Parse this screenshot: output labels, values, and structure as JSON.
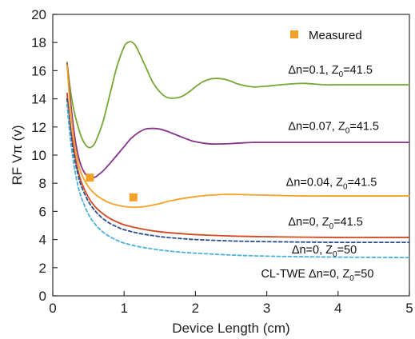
{
  "chart_data": {
    "type": "line",
    "title": "",
    "xlabel": "Device Length (cm)",
    "ylabel": "RF Vπ (v)",
    "xlim": [
      0,
      5
    ],
    "ylim": [
      0,
      20
    ],
    "xticks": [
      0,
      1,
      2,
      3,
      4,
      5
    ],
    "yticks": [
      0,
      2,
      4,
      6,
      8,
      10,
      12,
      14,
      16,
      18,
      20
    ],
    "grid": false,
    "legend": {
      "placement": "top-right",
      "entries": [
        "Measured"
      ]
    },
    "series": [
      {
        "name": "Δn=0.1, Z0=41.5",
        "color": "#77a736",
        "style": "solid",
        "x": [
          0.2,
          0.25,
          0.3,
          0.35,
          0.4,
          0.45,
          0.5,
          0.55,
          0.6,
          0.7,
          0.8,
          0.9,
          1.0,
          1.05,
          1.1,
          1.15,
          1.2,
          1.3,
          1.4,
          1.5,
          1.6,
          1.7,
          1.8,
          1.9,
          2.0,
          2.1,
          2.2,
          2.3,
          2.4,
          2.5,
          2.6,
          2.8,
          3.0,
          3.2,
          3.5,
          3.8,
          4.0,
          4.5,
          5.0
        ],
        "y": [
          16.6,
          14.5,
          13.1,
          12.1,
          11.3,
          10.8,
          10.55,
          10.6,
          10.95,
          12.3,
          14.3,
          16.3,
          17.7,
          18.0,
          18.05,
          17.85,
          17.4,
          16.3,
          15.2,
          14.5,
          14.1,
          14.05,
          14.15,
          14.45,
          14.85,
          15.2,
          15.4,
          15.45,
          15.4,
          15.25,
          15.05,
          14.85,
          14.9,
          15.0,
          15.1,
          15.0,
          15.0,
          15.0,
          15.0
        ]
      },
      {
        "name": "Δn=0.07, Z0=41.5",
        "color": "#86338b",
        "style": "solid",
        "x": [
          0.2,
          0.25,
          0.3,
          0.35,
          0.4,
          0.45,
          0.5,
          0.55,
          0.6,
          0.65,
          0.7,
          0.8,
          0.9,
          1.0,
          1.1,
          1.2,
          1.3,
          1.4,
          1.5,
          1.6,
          1.7,
          1.8,
          1.9,
          2.0,
          2.2,
          2.4,
          2.6,
          2.8,
          3.0,
          3.5,
          4.0,
          4.5,
          5.0
        ],
        "y": [
          16.5,
          13.8,
          11.6,
          10.1,
          9.2,
          8.7,
          8.45,
          8.4,
          8.45,
          8.65,
          8.85,
          9.4,
          10.0,
          10.6,
          11.2,
          11.6,
          11.85,
          11.9,
          11.85,
          11.7,
          11.5,
          11.3,
          11.1,
          10.95,
          10.8,
          10.8,
          10.85,
          10.9,
          10.9,
          10.9,
          10.9,
          10.9,
          10.9
        ]
      },
      {
        "name": "Δn=0.04, Z0=41.5",
        "color": "#f2a226",
        "style": "solid",
        "x": [
          0.2,
          0.25,
          0.3,
          0.35,
          0.4,
          0.5,
          0.6,
          0.7,
          0.8,
          0.9,
          1.0,
          1.1,
          1.2,
          1.3,
          1.4,
          1.5,
          1.6,
          1.7,
          1.8,
          2.0,
          2.2,
          2.4,
          2.6,
          3.0,
          3.5,
          4.0,
          4.5,
          5.0
        ],
        "y": [
          16.4,
          13.2,
          11.0,
          9.6,
          8.7,
          7.75,
          7.2,
          6.85,
          6.6,
          6.45,
          6.35,
          6.3,
          6.3,
          6.35,
          6.45,
          6.55,
          6.7,
          6.8,
          6.9,
          7.05,
          7.15,
          7.2,
          7.2,
          7.15,
          7.1,
          7.1,
          7.1,
          7.1
        ]
      },
      {
        "name": "Δn=0, Z0=41.5",
        "color": "#d24a22",
        "style": "solid",
        "x": [
          0.2,
          0.25,
          0.3,
          0.35,
          0.4,
          0.5,
          0.6,
          0.7,
          0.8,
          0.9,
          1.0,
          1.2,
          1.4,
          1.6,
          1.8,
          2.0,
          2.5,
          3.0,
          3.5,
          4.0,
          4.5,
          5.0
        ],
        "y": [
          14.4,
          12.0,
          10.3,
          9.0,
          8.1,
          7.0,
          6.3,
          5.85,
          5.5,
          5.25,
          5.05,
          4.8,
          4.62,
          4.5,
          4.42,
          4.35,
          4.25,
          4.2,
          4.17,
          4.15,
          4.15,
          4.15
        ]
      },
      {
        "name": "Δn=0, Z0=50",
        "color": "#2d4f8e",
        "style": "dashed",
        "x": [
          0.2,
          0.25,
          0.3,
          0.35,
          0.4,
          0.5,
          0.6,
          0.7,
          0.8,
          0.9,
          1.0,
          1.2,
          1.4,
          1.6,
          1.8,
          2.0,
          2.5,
          3.0,
          3.5,
          4.0,
          4.5,
          5.0
        ],
        "y": [
          14.0,
          11.6,
          9.9,
          8.7,
          7.8,
          6.7,
          6.0,
          5.5,
          5.15,
          4.9,
          4.7,
          4.45,
          4.28,
          4.15,
          4.07,
          4.0,
          3.9,
          3.85,
          3.82,
          3.8,
          3.8,
          3.8
        ]
      },
      {
        "name": "CL-TWE Δn=0, Z0=50",
        "color": "#4bb0dd",
        "style": "dashed",
        "x": [
          0.2,
          0.25,
          0.3,
          0.35,
          0.4,
          0.5,
          0.6,
          0.7,
          0.8,
          0.9,
          1.0,
          1.2,
          1.4,
          1.6,
          1.8,
          2.0,
          2.5,
          3.0,
          3.5,
          4.0,
          4.5,
          5.0
        ],
        "y": [
          13.6,
          11.0,
          9.2,
          7.9,
          7.0,
          5.8,
          5.05,
          4.55,
          4.2,
          3.95,
          3.75,
          3.5,
          3.33,
          3.2,
          3.1,
          3.03,
          2.9,
          2.82,
          2.78,
          2.75,
          2.73,
          2.72
        ]
      }
    ],
    "markers": {
      "name": "Measured",
      "color": "#f2a226",
      "points": [
        {
          "x": 0.52,
          "y": 8.4
        },
        {
          "x": 1.13,
          "y": 7.0
        }
      ]
    },
    "annotations": [
      {
        "text": "Δn=0.1, Z",
        "sub": "0",
        "tail": "=41.5",
        "x": 3.3,
        "y": 15.8
      },
      {
        "text": "Δn=0.07, Z",
        "sub": "0",
        "tail": "=41.5",
        "x": 3.3,
        "y": 11.8
      },
      {
        "text": "Δn=0.04, Z",
        "sub": "0",
        "tail": "=41.5",
        "x": 3.27,
        "y": 7.8
      },
      {
        "text": "Δn=0, Z",
        "sub": "0",
        "tail": "=41.5",
        "x": 3.3,
        "y": 5.0
      },
      {
        "text": "Δn=0, Z",
        "sub": "0",
        "tail": "=50",
        "x": 3.35,
        "y": 3.0
      },
      {
        "text": "CL-TWE Δn=0, Z",
        "sub": "0",
        "tail": "=50",
        "x": 2.92,
        "y": 1.3
      }
    ]
  }
}
